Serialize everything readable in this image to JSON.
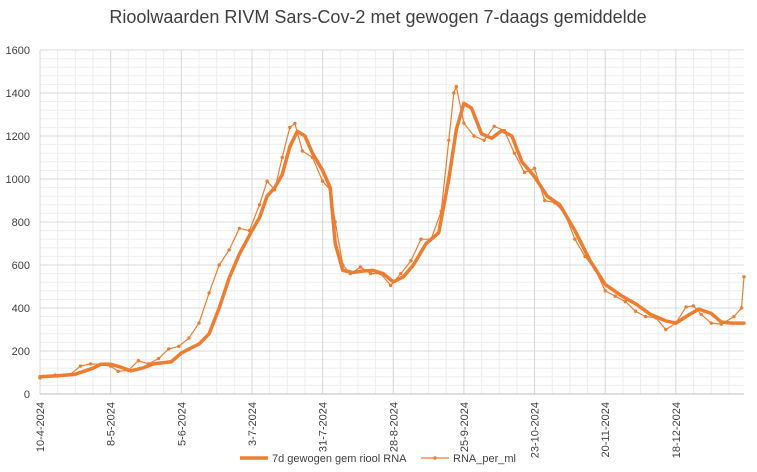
{
  "chart_data": {
    "type": "line",
    "title": "Rioolwaarden RIVM Sars-Cov-2 met gewogen 7-daags gemiddelde",
    "xlabel": "",
    "ylabel": "",
    "ylim": [
      0,
      1600
    ],
    "yticks": [
      0,
      200,
      400,
      600,
      800,
      1000,
      1200,
      1400,
      1600
    ],
    "xlim": [
      "2024-04-10",
      "2025-01-14"
    ],
    "xticks": [
      "2024-04-10",
      "2024-05-08",
      "2024-06-05",
      "2024-07-03",
      "2024-07-31",
      "2024-08-28",
      "2024-09-25",
      "2024-10-23",
      "2024-11-20",
      "2024-12-18"
    ],
    "xtick_labels": [
      "10-4-2024",
      "8-5-2024",
      "5-6-2024",
      "3-7-2024",
      "31-7-2024",
      "28-8-2024",
      "25-9-2024",
      "23-10-2024",
      "20-11-2024",
      "18-12-2024"
    ],
    "grid": true,
    "legend_position": "bottom",
    "series": [
      {
        "name": "7d gewogen gem riool RNA",
        "color": "#ed7d31",
        "style": "thick-line",
        "points": [
          [
            "2024-04-10",
            80
          ],
          [
            "2024-04-17",
            85
          ],
          [
            "2024-04-24",
            92
          ],
          [
            "2024-05-01",
            120
          ],
          [
            "2024-05-04",
            138
          ],
          [
            "2024-05-08",
            138
          ],
          [
            "2024-05-12",
            125
          ],
          [
            "2024-05-16",
            108
          ],
          [
            "2024-05-21",
            122
          ],
          [
            "2024-05-25",
            140
          ],
          [
            "2024-06-01",
            150
          ],
          [
            "2024-06-05",
            190
          ],
          [
            "2024-06-09",
            215
          ],
          [
            "2024-06-12",
            232
          ],
          [
            "2024-06-16",
            280
          ],
          [
            "2024-06-20",
            400
          ],
          [
            "2024-06-24",
            540
          ],
          [
            "2024-06-28",
            650
          ],
          [
            "2024-07-03",
            760
          ],
          [
            "2024-07-06",
            820
          ],
          [
            "2024-07-09",
            920
          ],
          [
            "2024-07-12",
            960
          ],
          [
            "2024-07-15",
            1020
          ],
          [
            "2024-07-18",
            1150
          ],
          [
            "2024-07-21",
            1222
          ],
          [
            "2024-07-24",
            1200
          ],
          [
            "2024-07-27",
            1120
          ],
          [
            "2024-07-31",
            1040
          ],
          [
            "2024-08-03",
            960
          ],
          [
            "2024-08-05",
            700
          ],
          [
            "2024-08-08",
            575
          ],
          [
            "2024-08-12",
            565
          ],
          [
            "2024-08-16",
            572
          ],
          [
            "2024-08-20",
            575
          ],
          [
            "2024-08-24",
            560
          ],
          [
            "2024-08-28",
            522
          ],
          [
            "2024-09-01",
            545
          ],
          [
            "2024-09-05",
            600
          ],
          [
            "2024-09-10",
            700
          ],
          [
            "2024-09-15",
            750
          ],
          [
            "2024-09-19",
            1000
          ],
          [
            "2024-09-22",
            1230
          ],
          [
            "2024-09-25",
            1352
          ],
          [
            "2024-09-28",
            1330
          ],
          [
            "2024-10-02",
            1210
          ],
          [
            "2024-10-06",
            1190
          ],
          [
            "2024-10-10",
            1225
          ],
          [
            "2024-10-14",
            1200
          ],
          [
            "2024-10-18",
            1080
          ],
          [
            "2024-10-23",
            1010
          ],
          [
            "2024-10-28",
            920
          ],
          [
            "2024-11-02",
            880
          ],
          [
            "2024-11-08",
            760
          ],
          [
            "2024-11-14",
            620
          ],
          [
            "2024-11-20",
            510
          ],
          [
            "2024-11-26",
            460
          ],
          [
            "2024-12-02",
            420
          ],
          [
            "2024-12-08",
            370
          ],
          [
            "2024-12-14",
            340
          ],
          [
            "2024-12-18",
            330
          ],
          [
            "2024-12-22",
            360
          ],
          [
            "2024-12-27",
            395
          ],
          [
            "2025-01-01",
            375
          ],
          [
            "2025-01-05",
            335
          ],
          [
            "2025-01-09",
            330
          ],
          [
            "2025-01-14",
            330
          ]
        ]
      },
      {
        "name": "RNA_per_ml",
        "color": "#ed7d31",
        "style": "thin-line-with-markers",
        "points": [
          [
            "2024-04-10",
            75
          ],
          [
            "2024-04-16",
            88
          ],
          [
            "2024-04-22",
            90
          ],
          [
            "2024-04-26",
            130
          ],
          [
            "2024-04-30",
            140
          ],
          [
            "2024-05-04",
            138
          ],
          [
            "2024-05-08",
            130
          ],
          [
            "2024-05-11",
            105
          ],
          [
            "2024-05-15",
            110
          ],
          [
            "2024-05-19",
            155
          ],
          [
            "2024-05-23",
            140
          ],
          [
            "2024-05-27",
            165
          ],
          [
            "2024-05-31",
            210
          ],
          [
            "2024-06-04",
            222
          ],
          [
            "2024-06-08",
            260
          ],
          [
            "2024-06-12",
            330
          ],
          [
            "2024-06-16",
            470
          ],
          [
            "2024-06-20",
            600
          ],
          [
            "2024-06-24",
            670
          ],
          [
            "2024-06-28",
            770
          ],
          [
            "2024-07-02",
            760
          ],
          [
            "2024-07-06",
            880
          ],
          [
            "2024-07-09",
            990
          ],
          [
            "2024-07-12",
            950
          ],
          [
            "2024-07-15",
            1100
          ],
          [
            "2024-07-18",
            1240
          ],
          [
            "2024-07-20",
            1258
          ],
          [
            "2024-07-23",
            1130
          ],
          [
            "2024-07-27",
            1100
          ],
          [
            "2024-07-31",
            990
          ],
          [
            "2024-08-03",
            950
          ],
          [
            "2024-08-05",
            800
          ],
          [
            "2024-08-08",
            600
          ],
          [
            "2024-08-11",
            560
          ],
          [
            "2024-08-15",
            590
          ],
          [
            "2024-08-19",
            560
          ],
          [
            "2024-08-23",
            560
          ],
          [
            "2024-08-27",
            505
          ],
          [
            "2024-08-31",
            560
          ],
          [
            "2024-09-04",
            620
          ],
          [
            "2024-09-08",
            720
          ],
          [
            "2024-09-12",
            720
          ],
          [
            "2024-09-16",
            850
          ],
          [
            "2024-09-19",
            1180
          ],
          [
            "2024-09-21",
            1400
          ],
          [
            "2024-09-22",
            1430
          ],
          [
            "2024-09-25",
            1260
          ],
          [
            "2024-09-29",
            1200
          ],
          [
            "2024-10-03",
            1180
          ],
          [
            "2024-10-07",
            1245
          ],
          [
            "2024-10-11",
            1225
          ],
          [
            "2024-10-15",
            1120
          ],
          [
            "2024-10-19",
            1030
          ],
          [
            "2024-10-23",
            1050
          ],
          [
            "2024-10-27",
            900
          ],
          [
            "2024-10-31",
            890
          ],
          [
            "2024-11-04",
            840
          ],
          [
            "2024-11-08",
            720
          ],
          [
            "2024-11-12",
            640
          ],
          [
            "2024-11-16",
            580
          ],
          [
            "2024-11-20",
            480
          ],
          [
            "2024-11-24",
            455
          ],
          [
            "2024-11-28",
            430
          ],
          [
            "2024-12-02",
            385
          ],
          [
            "2024-12-06",
            360
          ],
          [
            "2024-12-10",
            355
          ],
          [
            "2024-12-14",
            300
          ],
          [
            "2024-12-18",
            330
          ],
          [
            "2024-12-22",
            405
          ],
          [
            "2024-12-25",
            410
          ],
          [
            "2024-12-28",
            370
          ],
          [
            "2025-01-01",
            330
          ],
          [
            "2025-01-05",
            325
          ],
          [
            "2025-01-10",
            360
          ],
          [
            "2025-01-13",
            400
          ],
          [
            "2025-01-14",
            545
          ]
        ]
      }
    ]
  }
}
